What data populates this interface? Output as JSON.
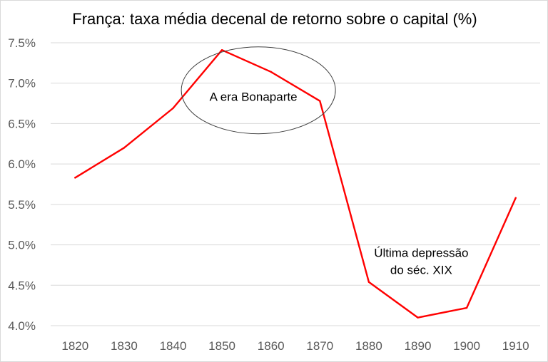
{
  "chart_data": {
    "type": "line",
    "title": "França: taxa média decenal de retorno sobre o capital (%)",
    "xlabel": "",
    "ylabel": "",
    "x": [
      1820,
      1830,
      1840,
      1850,
      1860,
      1870,
      1880,
      1890,
      1900,
      1910
    ],
    "series": [
      {
        "values": [
          5.83,
          6.2,
          6.69,
          7.41,
          7.14,
          6.78,
          4.54,
          4.1,
          4.22,
          5.58
        ],
        "color": "#ff0000"
      }
    ],
    "ylim": [
      4.0,
      7.5
    ],
    "yticks": [
      "4.0%",
      "4.5%",
      "5.0%",
      "5.5%",
      "6.0%",
      "6.5%",
      "7.0%",
      "7.5%"
    ],
    "ytick_values": [
      4.0,
      4.5,
      5.0,
      5.5,
      6.0,
      6.5,
      7.0,
      7.5
    ],
    "xticks": [
      "1820",
      "1830",
      "1840",
      "1850",
      "1860",
      "1870",
      "1880",
      "1890",
      "1900",
      "1910"
    ],
    "grid": "horizontal",
    "legend": "none",
    "annotations": [
      {
        "text": "A era Bonaparte",
        "at_x": 1857,
        "at_y": 7.0,
        "shape": "ellipse"
      },
      {
        "lines": [
          "Última depressão",
          "do séc. XIX"
        ],
        "at_x": 1891,
        "at_y": 4.78
      }
    ]
  },
  "colors": {
    "line": "#ff0000",
    "grid": "#d9d9d9",
    "tick_text": "#595959",
    "ellipse": "#404040"
  }
}
